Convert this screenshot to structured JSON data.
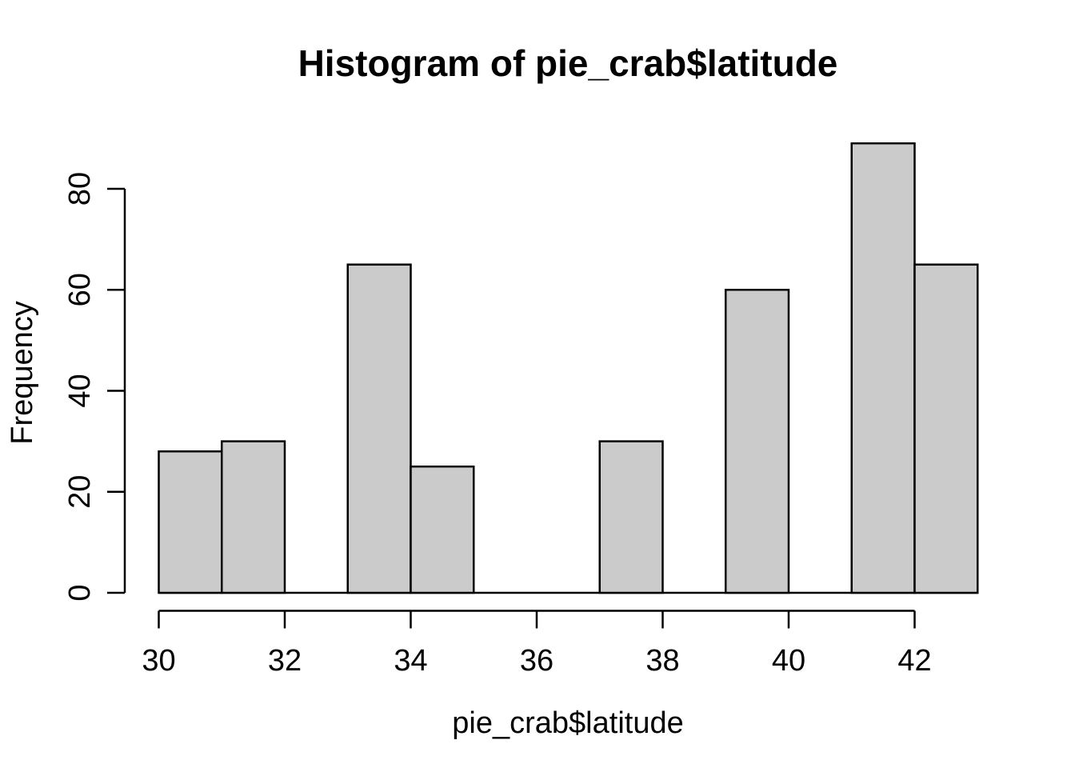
{
  "figure": {
    "background": "#FFFFFF",
    "bar_fill": "#CBCBCB",
    "bar_stroke": "#000000",
    "axis_color": "#000000",
    "text_color": "#000000"
  },
  "chart_data": {
    "type": "bar",
    "subtype": "histogram",
    "title": "Histogram of pie_crab$latitude",
    "xlabel": "pie_crab$latitude",
    "ylabel": "Frequency",
    "bin_edges": [
      30,
      31,
      32,
      33,
      34,
      35,
      36,
      37,
      38,
      39,
      40,
      41,
      42,
      43
    ],
    "counts": [
      28,
      30,
      0,
      65,
      25,
      0,
      0,
      30,
      0,
      60,
      0,
      89,
      65
    ],
    "x_ticks": [
      30,
      32,
      34,
      36,
      38,
      40,
      42
    ],
    "y_ticks": [
      0,
      20,
      40,
      60,
      80
    ],
    "xlim": [
      30,
      43
    ],
    "ylim": [
      0,
      89
    ],
    "grid": false,
    "legend_position": "none"
  }
}
